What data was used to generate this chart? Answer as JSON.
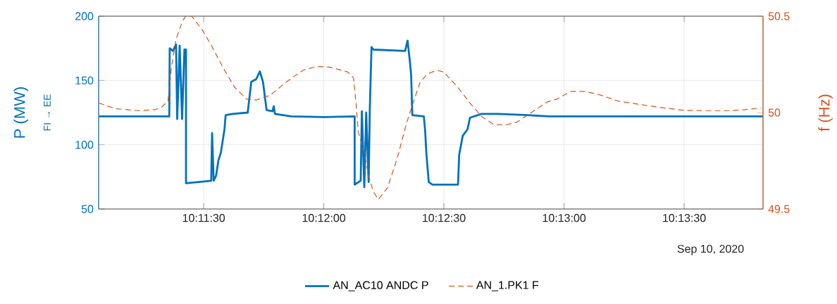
{
  "chart_data": {
    "type": "line",
    "ylabel": "P (MW)",
    "y2label": "f (Hz)",
    "annotations": [
      "FI → EE",
      "Sep 10, 2020"
    ],
    "xlim": [
      10.18438,
      10.23047
    ],
    "xticks": [
      {
        "value": 10.19167,
        "label": "10:11:30"
      },
      {
        "value": 10.2,
        "label": "10:12:00"
      },
      {
        "value": 10.20833,
        "label": "10:12:30"
      },
      {
        "value": 10.21667,
        "label": "10:13:00"
      },
      {
        "value": 10.225,
        "label": "10:13:30"
      }
    ],
    "ylim": [
      50,
      200
    ],
    "yticks": [
      50,
      100,
      150,
      200
    ],
    "y2lim": [
      49.5,
      50.5
    ],
    "y2ticks": [
      49.5,
      50,
      50.5
    ],
    "grid": true,
    "legend": "bottom",
    "series": [
      {
        "name": "AN_AC10 ANDC P",
        "color": "#0072bd",
        "line_style": "solid",
        "x": [
          10.18439,
          10.18928,
          10.18931,
          10.18953,
          10.18975,
          10.18983,
          10.19,
          10.19017,
          10.19033,
          10.19044,
          10.19044,
          10.19219,
          10.19225,
          10.19236,
          10.19253,
          10.19269,
          10.19286,
          10.19311,
          10.19319,
          10.19367,
          10.19472,
          10.19497,
          10.19531,
          10.19556,
          10.19578,
          10.19603,
          10.19644,
          10.19653,
          10.19661,
          10.19775,
          10.20003,
          10.20214,
          10.20214,
          10.20256,
          10.20264,
          10.20281,
          10.20294,
          10.20311,
          10.20319,
          10.20331,
          10.20344,
          10.20564,
          10.20581,
          10.20597,
          10.20606,
          10.20614,
          10.20694,
          10.20703,
          10.20711,
          10.20728,
          10.20753,
          10.20931,
          10.20939,
          10.20964,
          10.20997,
          10.21014,
          10.21094,
          10.21208,
          10.21419,
          10.21567,
          10.22222,
          10.23047
        ],
        "values": [
          122,
          122,
          175,
          173,
          178,
          120,
          177,
          120,
          174,
          174,
          70,
          72,
          109,
          72,
          76,
          88,
          94,
          112,
          123,
          124,
          125,
          149,
          151,
          157,
          149,
          127,
          126,
          130,
          124,
          122,
          121.5,
          122,
          69,
          72,
          126,
          67,
          125,
          71,
          127,
          176,
          174,
          173,
          181,
          165,
          154,
          123,
          122,
          111,
          94,
          71,
          69,
          69,
          92,
          107,
          112,
          121,
          124,
          124,
          123,
          122,
          122,
          122
        ]
      },
      {
        "name": "AN_1.PK1 F",
        "color": "#d95319",
        "line_style": "dashed",
        "axis": "y2",
        "x": [
          10.18439,
          10.18553,
          10.18717,
          10.18831,
          10.18878,
          10.18919,
          10.18944,
          10.18975,
          10.19017,
          10.19042,
          10.19083,
          10.19156,
          10.19219,
          10.19303,
          10.19383,
          10.19464,
          10.19531,
          10.19628,
          10.19742,
          10.19856,
          10.19953,
          10.2005,
          10.20167,
          10.20206,
          10.20222,
          10.20239,
          10.20281,
          10.20311,
          10.20344,
          10.20378,
          10.20442,
          10.20508,
          10.20572,
          10.20606,
          10.20669,
          10.20719,
          10.20783,
          10.20833,
          10.20931,
          10.21014,
          10.21094,
          10.21175,
          10.21258,
          10.21339,
          10.21419,
          10.2155,
          10.21617,
          10.21714,
          10.21811,
          10.21925,
          10.22039,
          10.22169,
          10.22331,
          10.22494,
          10.22658,
          10.22819,
          10.22919,
          10.23033
        ],
        "values": [
          50.05,
          50.02,
          50.01,
          50.015,
          50.03,
          50.06,
          50.24,
          50.38,
          50.47,
          50.5,
          50.5,
          50.43,
          50.35,
          50.23,
          50.13,
          50.07,
          50.065,
          50.09,
          50.16,
          50.22,
          50.24,
          50.235,
          50.21,
          50.18,
          50.06,
          49.9,
          49.79,
          49.67,
          49.59,
          49.55,
          49.61,
          49.76,
          49.94,
          50.02,
          50.16,
          50.2,
          50.22,
          50.21,
          50.13,
          50.05,
          49.98,
          49.94,
          49.935,
          49.95,
          49.99,
          50.055,
          50.07,
          50.11,
          50.11,
          50.09,
          50.06,
          50.045,
          50.027,
          50.012,
          50.01,
          50.01,
          50.015,
          50.024
        ]
      }
    ]
  }
}
